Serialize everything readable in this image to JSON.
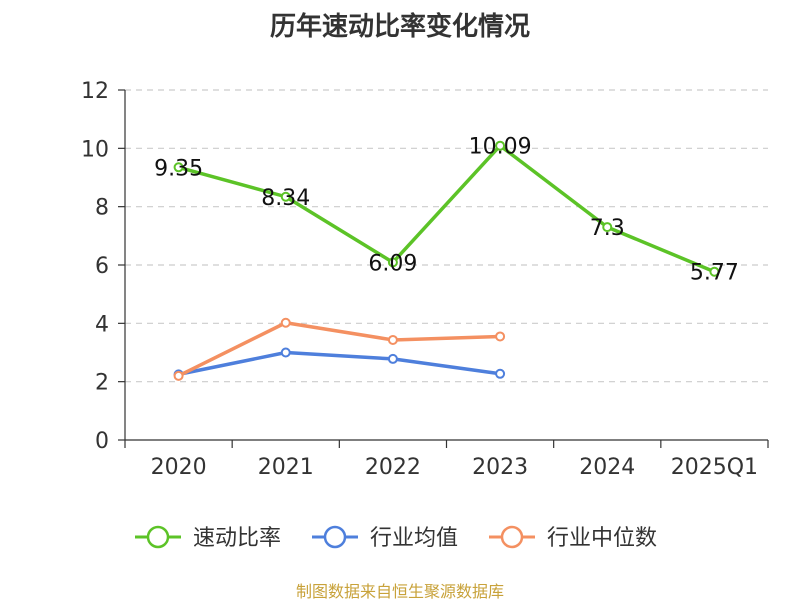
{
  "source_note": "制图数据来自恒生聚源数据库",
  "chart_data": {
    "type": "line",
    "title": "历年速动比率变化情况",
    "categories": [
      "2020",
      "2021",
      "2022",
      "2023",
      "2024",
      "2025Q1"
    ],
    "ylim": [
      0,
      12
    ],
    "yticks": [
      0,
      2,
      4,
      6,
      8,
      10,
      12
    ],
    "grid": true,
    "legend_position": "bottom",
    "series": [
      {
        "name": "速动比率",
        "color": "#5cc327",
        "values": [
          9.35,
          8.34,
          6.09,
          10.09,
          7.3,
          5.77
        ],
        "labels": [
          "9.35",
          "8.34",
          "6.09",
          "10.09",
          "7.3",
          "5.77"
        ],
        "show_labels": true
      },
      {
        "name": "行业均值",
        "color": "#4e7fdc",
        "values": [
          2.25,
          3.0,
          2.78,
          2.27,
          null,
          null
        ],
        "show_labels": false
      },
      {
        "name": "行业中位数",
        "color": "#f49061",
        "values": [
          2.2,
          4.02,
          3.43,
          3.55,
          null,
          null
        ],
        "show_labels": false
      }
    ]
  }
}
